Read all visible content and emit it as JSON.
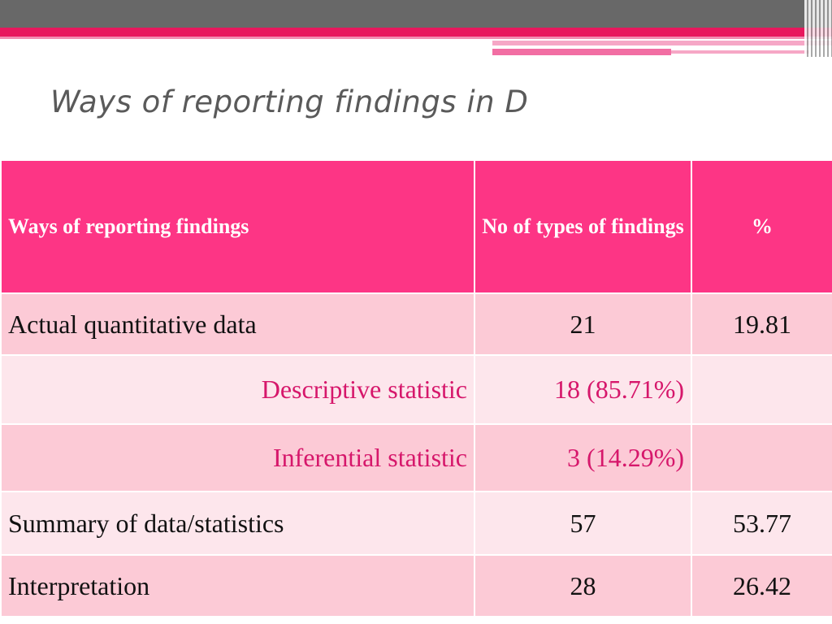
{
  "slide": {
    "title": "Ways of reporting findings in D"
  },
  "table": {
    "headers": [
      "Ways of reporting findings",
      "No of types of findings",
      "%"
    ],
    "rows": [
      {
        "label": "Actual quantitative data",
        "count": "21",
        "percent": "19.81"
      },
      {
        "label": "Descriptive statistic",
        "count": "18 (85.71%)",
        "percent": ""
      },
      {
        "label": "Inferential statistic",
        "count": "3 (14.29%)",
        "percent": ""
      },
      {
        "label": "Summary of data/statistics",
        "count": "57",
        "percent": "53.77"
      },
      {
        "label": "Interpretation",
        "count": "28",
        "percent": "26.42"
      }
    ]
  },
  "colors": {
    "header_bg": "#fd3585",
    "row_pink": "#fccad6",
    "row_light": "#fde6ec",
    "subrow_text": "#d6176b",
    "top_bar": "#686868",
    "accent": "#e8175d"
  }
}
